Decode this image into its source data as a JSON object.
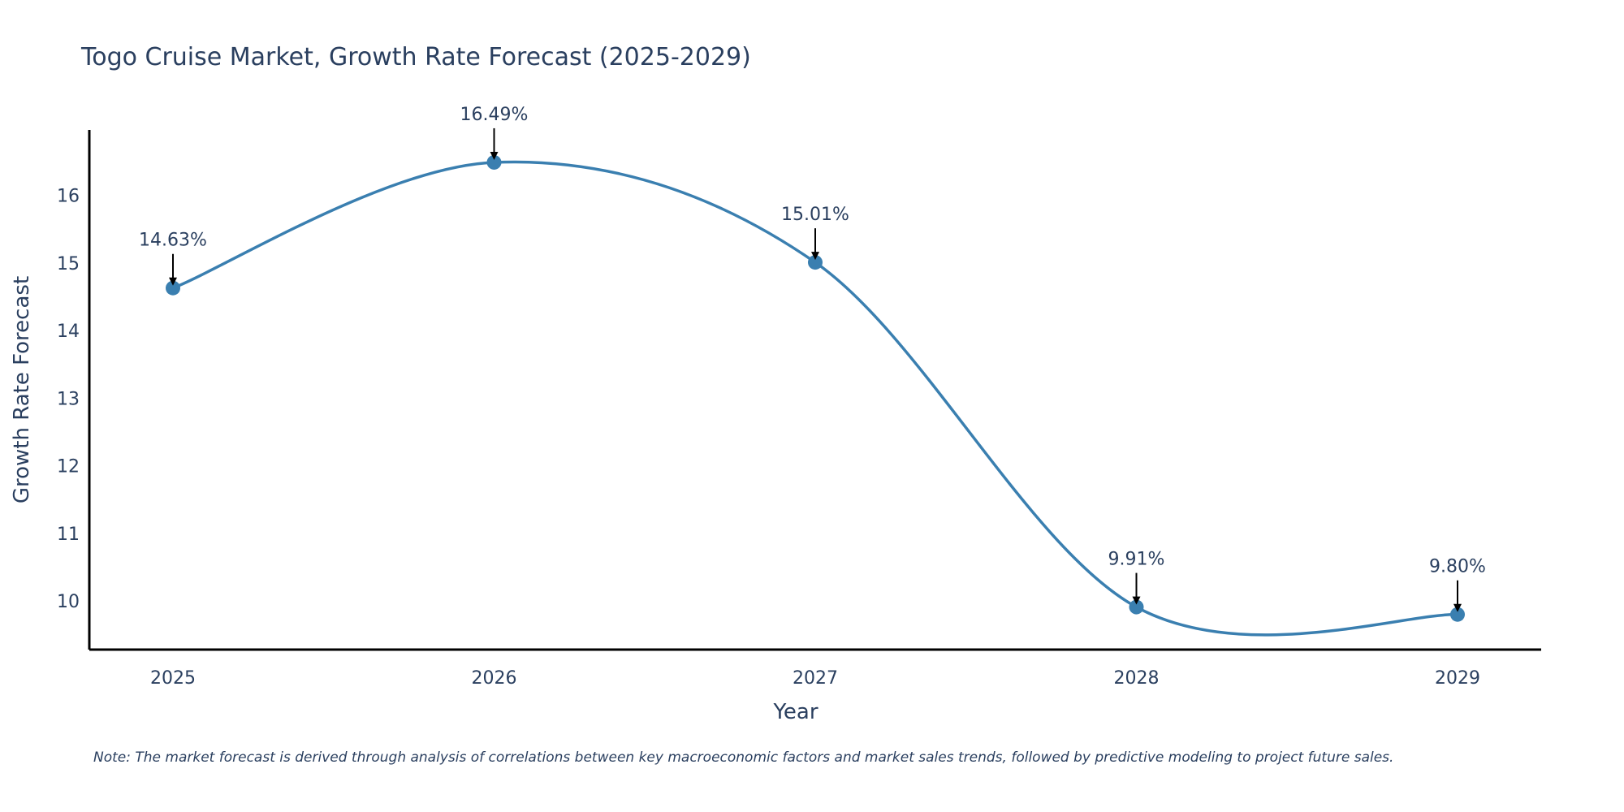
{
  "chart_data": {
    "type": "line",
    "title": "Togo Cruise Market, Growth Rate Forecast (2025-2029)",
    "xlabel": "Year",
    "ylabel": "Growth Rate Forecast",
    "categories": [
      "2025",
      "2026",
      "2027",
      "2028",
      "2029"
    ],
    "values": [
      14.63,
      16.49,
      15.01,
      9.91,
      9.8
    ],
    "data_labels": [
      "14.63%",
      "16.49%",
      "15.01%",
      "9.91%",
      "9.80%"
    ],
    "yticks": [
      10,
      11,
      12,
      13,
      14,
      15,
      16
    ],
    "ylim": [
      9.28,
      16.97
    ],
    "grid": false,
    "line_color": "#3a7fb0",
    "marker_color": "#3a7fb0",
    "arrow_color": "#000000"
  },
  "note": "Note: The market forecast is derived through analysis of correlations between key macroeconomic factors and market sales trends, followed by predictive modeling to project future sales."
}
